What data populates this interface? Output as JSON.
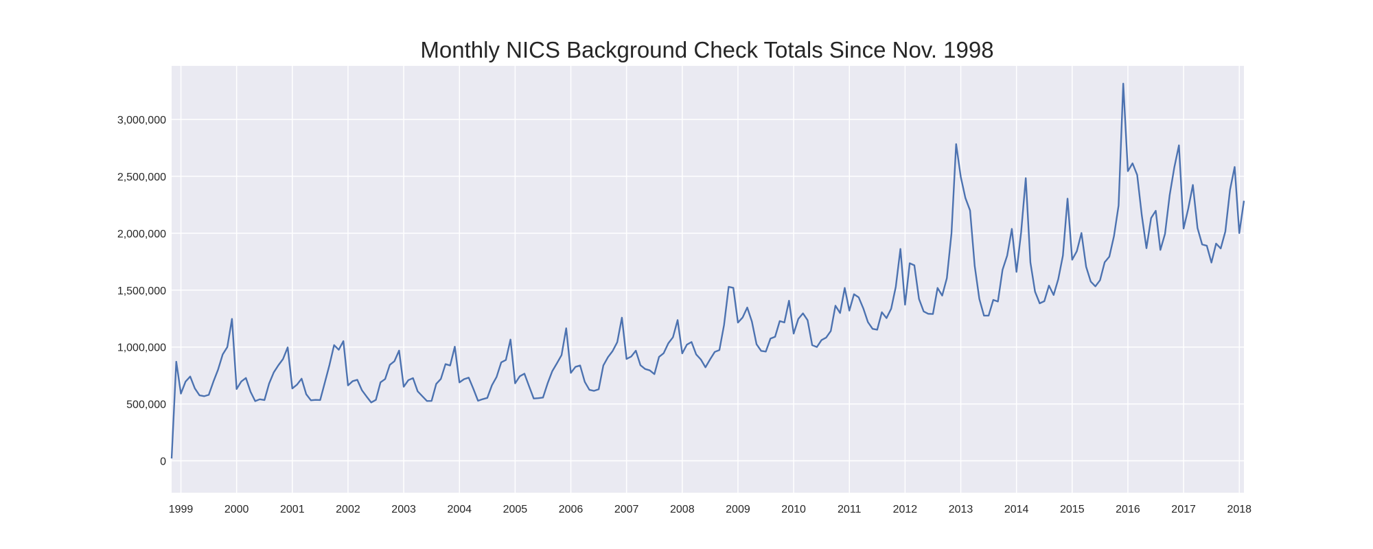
{
  "colors": {
    "plot_bg": "#eaeaf2",
    "grid": "#ffffff",
    "line": "#4c72b0",
    "text": "#262626"
  },
  "chart_data": {
    "type": "line",
    "title": "Monthly NICS Background Check Totals Since Nov. 1998",
    "xlabel": "",
    "ylabel": "",
    "x_start": "1998-11",
    "xlim": [
      "1998-11",
      "2018-02"
    ],
    "ylim": [
      -280000,
      3470000
    ],
    "grid": true,
    "legend": "none",
    "y_ticks": [
      0,
      500000,
      1000000,
      1500000,
      2000000,
      2500000,
      3000000
    ],
    "y_tick_labels": [
      "0",
      "500,000",
      "1,000,000",
      "1,500,000",
      "2,000,000",
      "2,500,000",
      "3,000,000"
    ],
    "x_ticks": [
      "1999-01",
      "2000-01",
      "2001-01",
      "2002-01",
      "2003-01",
      "2004-01",
      "2005-01",
      "2006-01",
      "2007-01",
      "2008-01",
      "2009-01",
      "2010-01",
      "2011-01",
      "2012-01",
      "2013-01",
      "2014-01",
      "2015-01",
      "2016-01",
      "2017-01",
      "2018-01"
    ],
    "x_tick_labels": [
      "1999",
      "2000",
      "2001",
      "2002",
      "2003",
      "2004",
      "2005",
      "2006",
      "2007",
      "2008",
      "2009",
      "2010",
      "2011",
      "2012",
      "2013",
      "2014",
      "2015",
      "2016",
      "2017",
      "2018"
    ],
    "series": [
      {
        "values": [
          21000,
          871000,
          591000,
          696000,
          741000,
          637000,
          576000,
          568000,
          580000,
          696000,
          801000,
          935000,
          1000000,
          1247000,
          631000,
          697000,
          728000,
          607000,
          525000,
          541000,
          534000,
          679000,
          777000,
          840000,
          895000,
          997000,
          636000,
          669000,
          722000,
          585000,
          532000,
          536000,
          534000,
          687000,
          842000,
          1017000,
          976000,
          1052000,
          663000,
          700000,
          712000,
          620000,
          565000,
          513000,
          536000,
          690000,
          719000,
          843000,
          876000,
          969000,
          651000,
          709000,
          727000,
          611000,
          568000,
          526000,
          527000,
          676000,
          720000,
          850000,
          838000,
          1003000,
          689000,
          718000,
          731000,
          633000,
          528000,
          542000,
          553000,
          664000,
          737000,
          865000,
          886000,
          1066000,
          681000,
          743000,
          766000,
          656000,
          548000,
          551000,
          556000,
          681000,
          788000,
          857000,
          929000,
          1165000,
          773000,
          826000,
          838000,
          694000,
          624000,
          615000,
          629000,
          838000,
          911000,
          965000,
          1043000,
          1258000,
          895000,
          916000,
          968000,
          840000,
          807000,
          795000,
          762000,
          913000,
          946000,
          1033000,
          1086000,
          1237000,
          944000,
          1021000,
          1044000,
          935000,
          891000,
          822000,
          892000,
          957000,
          973000,
          1193000,
          1529000,
          1520000,
          1215000,
          1259000,
          1347000,
          1224000,
          1025000,
          966000,
          960000,
          1074000,
          1090000,
          1228000,
          1216000,
          1407000,
          1118000,
          1247000,
          1296000,
          1236000,
          1016000,
          1000000,
          1061000,
          1083000,
          1141000,
          1363000,
          1299000,
          1519000,
          1320000,
          1464000,
          1437000,
          1340000,
          1219000,
          1160000,
          1152000,
          1306000,
          1254000,
          1336000,
          1529000,
          1862000,
          1372000,
          1736000,
          1718000,
          1423000,
          1313000,
          1292000,
          1290000,
          1519000,
          1452000,
          1605000,
          1999000,
          2783000,
          2495000,
          2309000,
          2200000,
          1712000,
          1423000,
          1276000,
          1276000,
          1414000,
          1400000,
          1679000,
          1804000,
          2038000,
          1660000,
          2007000,
          2484000,
          1743000,
          1486000,
          1384000,
          1403000,
          1540000,
          1457000,
          1596000,
          1803000,
          2304000,
          1767000,
          1842000,
          2002000,
          1706000,
          1575000,
          1533000,
          1587000,
          1745000,
          1794000,
          1974000,
          2244000,
          3314000,
          2545000,
          2614000,
          2512000,
          2156000,
          1868000,
          2133000,
          2197000,
          1853000,
          1995000,
          2334000,
          2578000,
          2772000,
          2041000,
          2215000,
          2424000,
          2045000,
          1901000,
          1890000,
          1742000,
          1909000,
          1866000,
          2016000,
          2381000,
          2582000,
          2001000,
          2285000
        ]
      }
    ]
  }
}
